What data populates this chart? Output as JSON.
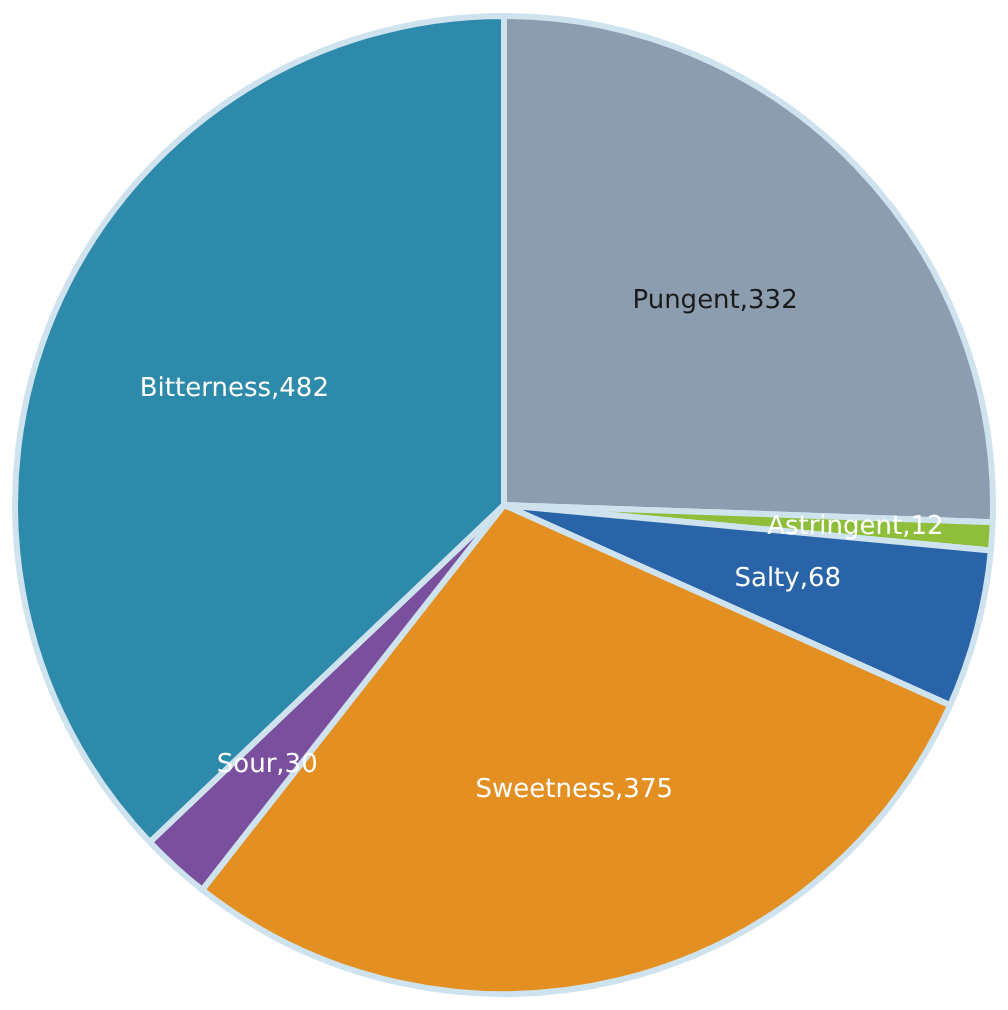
{
  "chart_data": {
    "type": "pie",
    "categories": [
      "Pungent,332",
      "Astringent,12",
      "Salty,68",
      "Sweetness,375",
      "Sour,30",
      "Bitterness,482"
    ],
    "values": [
      332,
      12,
      68,
      375,
      30,
      482
    ],
    "colors": [
      "#8d9db0",
      "#8fbf3a",
      "#2a64a8",
      "#e38f22",
      "#7a4f9e",
      "#2d8aab"
    ],
    "legend": false
  }
}
